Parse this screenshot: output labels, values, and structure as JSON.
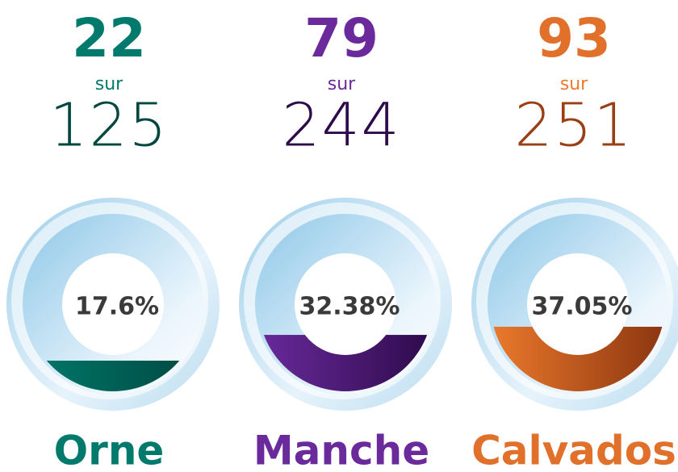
{
  "items": [
    {
      "count": 22,
      "sur": "sur",
      "total": 125,
      "percent": 17.6,
      "percent_label": "17.6%",
      "name": "Orne",
      "color": "#007a6c",
      "color2": "#00473f"
    },
    {
      "count": 79,
      "sur": "sur",
      "total": 244,
      "percent": 32.38,
      "percent_label": "32.38%",
      "name": "Manche",
      "color": "#6a2a9c",
      "color2": "#2d0a4a"
    },
    {
      "count": 93,
      "sur": "sur",
      "total": 251,
      "percent": 37.05,
      "percent_label": "37.05%",
      "name": "Calvados",
      "color": "#ec7a2c",
      "color2": "#8a3510"
    }
  ]
}
